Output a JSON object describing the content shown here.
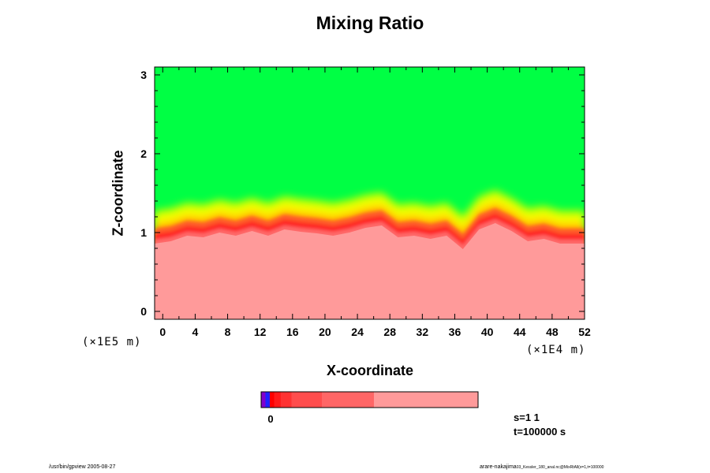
{
  "chart_data": {
    "type": "heatmap",
    "title": "Mixing Ratio",
    "xlabel": "X-coordinate",
    "ylabel": "Z-coordinate",
    "x_scale_label": "(×1E4 m)",
    "y_scale_label": "(×1E5 m)",
    "xlim": [
      -1,
      52
    ],
    "ylim": [
      -0.1,
      3.1
    ],
    "x_ticks": [
      0,
      4,
      8,
      12,
      16,
      20,
      24,
      28,
      32,
      36,
      40,
      44,
      48,
      52
    ],
    "y_ticks": [
      0,
      1,
      2,
      3
    ],
    "x_tick_labels": [
      "0",
      "4",
      "8",
      "12",
      "16",
      "20",
      "24",
      "28",
      "32",
      "36",
      "40",
      "44",
      "48",
      "52"
    ],
    "y_tick_labels": [
      "0",
      "1",
      "2",
      "3"
    ],
    "colors": {
      "upper_layer": "#00ff44",
      "yellow_band": "#ffff00",
      "lower_layer": "#ff9a9a",
      "red_band": "#ff2020"
    },
    "interface_height": [
      [
        -1,
        1.02
      ],
      [
        1,
        1.05
      ],
      [
        3,
        1.12
      ],
      [
        5,
        1.1
      ],
      [
        7,
        1.16
      ],
      [
        9,
        1.12
      ],
      [
        11,
        1.18
      ],
      [
        13,
        1.12
      ],
      [
        15,
        1.2
      ],
      [
        17,
        1.17
      ],
      [
        19,
        1.15
      ],
      [
        21,
        1.12
      ],
      [
        23,
        1.16
      ],
      [
        25,
        1.22
      ],
      [
        27,
        1.25
      ],
      [
        29,
        1.1
      ],
      [
        31,
        1.12
      ],
      [
        33,
        1.08
      ],
      [
        35,
        1.12
      ],
      [
        37,
        0.95
      ],
      [
        39,
        1.2
      ],
      [
        41,
        1.28
      ],
      [
        43,
        1.18
      ],
      [
        45,
        1.05
      ],
      [
        47,
        1.08
      ],
      [
        49,
        1.02
      ],
      [
        52,
        1.02
      ]
    ],
    "colorbar": {
      "tick_label": "0",
      "segments": [
        {
          "color": "#8000cc",
          "frac": 0.02
        },
        {
          "color": "#2020ff",
          "frac": 0.02
        },
        {
          "color": "#ff0000",
          "frac": 0.02
        },
        {
          "color": "#ff1a1a",
          "frac": 0.03
        },
        {
          "color": "#ff3333",
          "frac": 0.05
        },
        {
          "color": "#ff4d4d",
          "frac": 0.14
        },
        {
          "color": "#ff6666",
          "frac": 0.24
        },
        {
          "color": "#ff9a9a",
          "frac": 0.48
        }
      ]
    }
  },
  "info": {
    "s_text": "s=1 1",
    "t_text": "t=100000 s"
  },
  "footer": {
    "left": "/usr/bin/gpview 2005-08-27",
    "right": "arare-nakajima",
    "right_small": "03_Kessler_180_anal.nc@MixRtAll(x=1,t=100000"
  }
}
